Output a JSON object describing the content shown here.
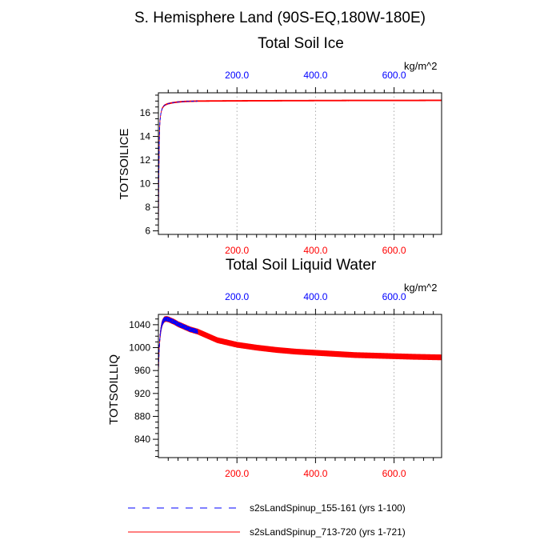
{
  "page_title": "S. Hemisphere Land (90S-EQ,180W-180E)",
  "chart_data": [
    {
      "type": "line",
      "title": "Total Soil Ice",
      "ylabel": "TOTSOILICE",
      "units": "kg/m^2",
      "xlim": [
        0,
        721
      ],
      "ylim": [
        5.7,
        17.7
      ],
      "yticks": [
        6,
        8,
        10,
        12,
        14,
        16
      ],
      "ytick_labels": [
        "6",
        "8",
        "10",
        "12",
        "14",
        "16"
      ],
      "top_axis": {
        "ticks": [
          200,
          400,
          600
        ],
        "labels": [
          "200.0",
          "400.0",
          "600.0"
        ],
        "color": "#0000ff"
      },
      "bottom_axis": {
        "ticks": [
          200,
          400,
          600
        ],
        "labels": [
          "200.0",
          "400.0",
          "600.0"
        ],
        "color": "#ff0000"
      },
      "grid_x": [
        200,
        400,
        600
      ],
      "series": [
        {
          "name": "s2sLandSpinup_155-161 (yrs 1-100)",
          "color": "#0000ff",
          "dash": "dashed",
          "x": [
            0,
            1,
            2,
            3,
            4,
            6,
            8,
            10,
            13,
            16,
            20,
            25,
            30,
            40,
            50,
            60,
            70,
            80,
            90,
            100
          ],
          "y": [
            6.0,
            10.5,
            13.2,
            14.6,
            15.3,
            15.9,
            16.2,
            16.4,
            16.55,
            16.65,
            16.72,
            16.78,
            16.82,
            16.88,
            16.92,
            16.95,
            16.97,
            16.98,
            16.99,
            17.0
          ]
        },
        {
          "name": "s2sLandSpinup_713-720 (yrs 1-721)",
          "color": "#ff0000",
          "dash": "solid",
          "x": [
            0,
            1,
            2,
            3,
            4,
            6,
            8,
            10,
            13,
            16,
            20,
            25,
            30,
            40,
            50,
            60,
            70,
            80,
            90,
            100,
            200,
            300,
            400,
            500,
            600,
            721
          ],
          "y": [
            6.0,
            10.5,
            13.2,
            14.6,
            15.3,
            15.9,
            16.2,
            16.4,
            16.55,
            16.65,
            16.72,
            16.78,
            16.82,
            16.88,
            16.92,
            16.95,
            16.97,
            16.98,
            16.99,
            17.0,
            17.02,
            17.03,
            17.04,
            17.05,
            17.05,
            17.06
          ],
          "seasonal_amplitude": 0.06
        }
      ]
    },
    {
      "type": "line",
      "title": "Total Soil Liquid Water",
      "ylabel": "TOTSOILLIQ",
      "units": "kg/m^2",
      "xlim": [
        0,
        721
      ],
      "ylim": [
        808,
        1058
      ],
      "yticks": [
        840,
        880,
        920,
        960,
        1000,
        1040
      ],
      "ytick_labels": [
        "840",
        "880",
        "920",
        "960",
        "1000",
        "1040"
      ],
      "top_axis": {
        "ticks": [
          200,
          400,
          600
        ],
        "labels": [
          "200.0",
          "400.0",
          "600.0"
        ],
        "color": "#0000ff"
      },
      "bottom_axis": {
        "ticks": [
          200,
          400,
          600
        ],
        "labels": [
          "200.0",
          "400.0",
          "600.0"
        ],
        "color": "#ff0000"
      },
      "grid_x": [
        200,
        400,
        600
      ],
      "series": [
        {
          "name": "s2sLandSpinup_155-161 (yrs 1-100)",
          "color": "#0000ff",
          "dash": "dashed",
          "x": [
            0,
            2,
            4,
            6,
            8,
            10,
            12,
            15,
            18,
            22,
            27,
            33,
            40,
            50,
            60,
            70,
            80,
            90,
            100
          ],
          "y": [
            958,
            998,
            1018,
            1030,
            1038,
            1043,
            1046,
            1049,
            1050,
            1050,
            1049,
            1047,
            1045,
            1041,
            1038,
            1035,
            1032,
            1030,
            1028
          ],
          "seasonal_amplitude": 4
        },
        {
          "name": "s2sLandSpinup_713-720 (yrs 1-721)",
          "color": "#ff0000",
          "dash": "solid",
          "x": [
            0,
            2,
            4,
            6,
            8,
            10,
            12,
            15,
            18,
            22,
            27,
            33,
            40,
            50,
            60,
            70,
            80,
            90,
            100,
            150,
            200,
            250,
            300,
            350,
            400,
            450,
            500,
            550,
            600,
            650,
            721
          ],
          "y": [
            958,
            998,
            1018,
            1030,
            1038,
            1043,
            1046,
            1049,
            1050,
            1050,
            1049,
            1047,
            1045,
            1041,
            1038,
            1035,
            1032,
            1030,
            1028,
            1013,
            1005,
            1000,
            996,
            993,
            991,
            989,
            987,
            986,
            985,
            984,
            983
          ],
          "seasonal_amplitude": 5
        }
      ]
    }
  ],
  "legend": [
    {
      "label": "s2sLandSpinup_155-161 (yrs 1-100)",
      "color": "#0000ff",
      "dash": "dashed"
    },
    {
      "label": "s2sLandSpinup_713-720 (yrs 1-721)",
      "color": "#ff0000",
      "dash": "solid"
    }
  ]
}
